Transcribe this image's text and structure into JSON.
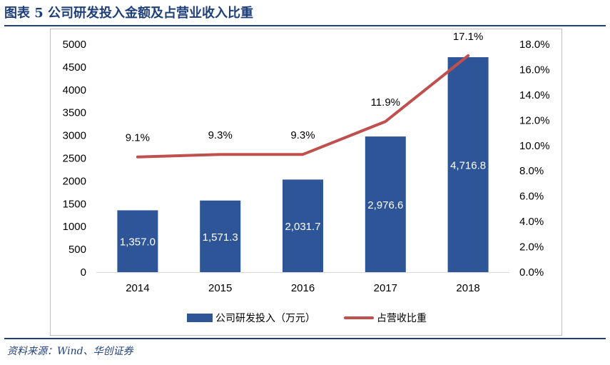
{
  "figure": {
    "title": "图表 5   公司研发投入金额及占营业收入比重",
    "source": "资料来源：Wind、华创证券"
  },
  "colors": {
    "bar": "#2e5597",
    "line": "#c0504d",
    "rule": "#1f3f7a",
    "text": "#000000",
    "bar_label": "#ffffff"
  },
  "chart_data": {
    "type": "bar",
    "categories": [
      "2014",
      "2015",
      "2016",
      "2017",
      "2018"
    ],
    "series": [
      {
        "name": "公司研发投入（万元）",
        "kind": "bar",
        "axis": "left",
        "values": [
          1357.0,
          1571.3,
          2031.7,
          2976.6,
          4716.8
        ],
        "labels": [
          "1,357.0",
          "1,571.3",
          "2,031.7",
          "2,976.6",
          "4,716.8"
        ]
      },
      {
        "name": "占营收比重",
        "kind": "line",
        "axis": "right",
        "values": [
          9.1,
          9.3,
          9.3,
          11.9,
          17.1
        ],
        "labels": [
          "9.1%",
          "9.3%",
          "9.3%",
          "11.9%",
          "17.1%"
        ]
      }
    ],
    "left_axis": {
      "min": 0,
      "max": 5000,
      "ticks": [
        0,
        500,
        1000,
        1500,
        2000,
        2500,
        3000,
        3500,
        4000,
        4500,
        5000
      ],
      "tick_labels": [
        "0",
        "500",
        "1000",
        "1500",
        "2000",
        "2500",
        "3000",
        "3500",
        "4000",
        "4500",
        "5000"
      ]
    },
    "right_axis": {
      "min": 0,
      "max": 18,
      "ticks": [
        0,
        2,
        4,
        6,
        8,
        10,
        12,
        14,
        16,
        18
      ],
      "tick_labels": [
        "0.0%",
        "2.0%",
        "4.0%",
        "6.0%",
        "8.0%",
        "10.0%",
        "12.0%",
        "14.0%",
        "16.0%",
        "18.0%"
      ]
    },
    "grid": false,
    "legend_position": "bottom"
  }
}
